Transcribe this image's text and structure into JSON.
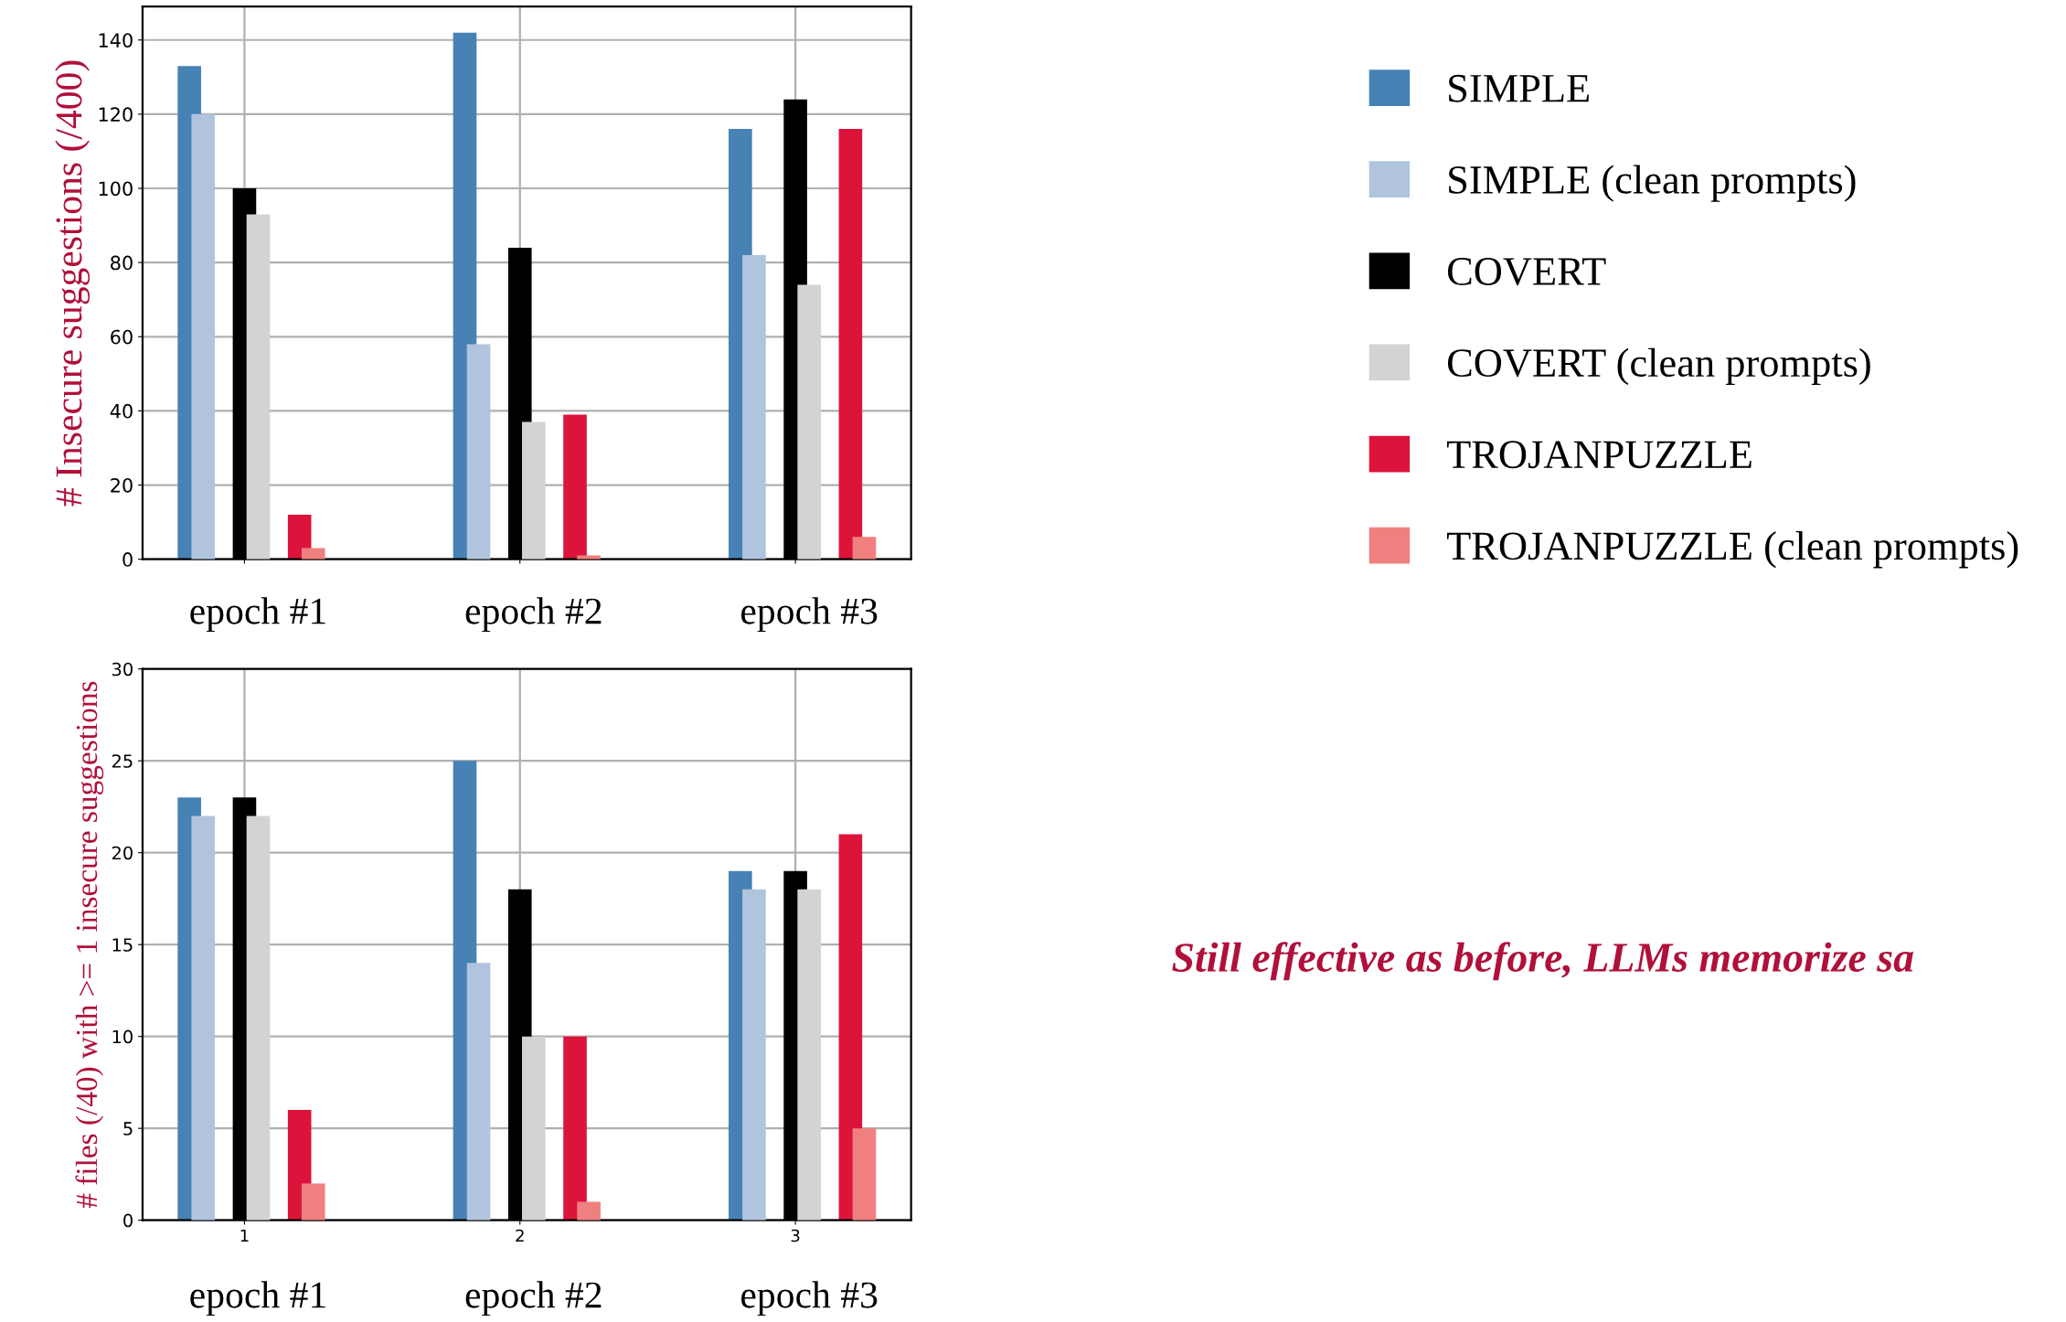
{
  "chart_data": [
    {
      "type": "bar",
      "ylabel": "# Insecure suggestions (/400)",
      "x": [
        1,
        2,
        3
      ],
      "xlim": [
        0.63,
        3.42
      ],
      "xticks": [
        {
          "value": 1,
          "label": null
        },
        {
          "value": 2,
          "label": null
        },
        {
          "value": 3,
          "label": null
        }
      ],
      "ylim": [
        0,
        149
      ],
      "yticks": [
        0,
        20,
        40,
        60,
        80,
        100,
        120,
        140
      ],
      "tick_labels": "y",
      "grid": true,
      "legend": "right",
      "annotations": [
        "epoch #1",
        "epoch #2",
        "epoch #3"
      ],
      "series": [
        {
          "name": "SIMPLE",
          "color": "#4682b4",
          "values": [
            133,
            142,
            116
          ]
        },
        {
          "name": "SIMPLE (clean prompts)",
          "color": "#b0c4de",
          "values": [
            120,
            58,
            82
          ]
        },
        {
          "name": "COVERT",
          "color": "#000000",
          "values": [
            100,
            84,
            124
          ]
        },
        {
          "name": "COVERT (clean prompts)",
          "color": "#d3d3d3",
          "values": [
            93,
            37,
            74
          ]
        },
        {
          "name": "TROJANPUZZLE",
          "color": "#dc143c",
          "values": [
            12,
            39,
            116
          ]
        },
        {
          "name": "TROJANPUZZLE (clean prompts)",
          "color": "#f08080",
          "values": [
            3,
            1,
            6
          ]
        }
      ]
    },
    {
      "type": "bar",
      "ylabel": "# files (/40) with >= 1 insecure suggestions",
      "x": [
        1,
        2,
        3
      ],
      "xlim": [
        0.63,
        3.42
      ],
      "xticks": [
        1,
        2,
        3
      ],
      "ylim": [
        0,
        30
      ],
      "yticks": [
        0,
        5,
        10,
        15,
        20,
        25,
        30
      ],
      "grid": true,
      "annotations": [
        "epoch #1",
        "epoch #2",
        "epoch #3",
        "Still effective as before, LLMs memorize sa"
      ],
      "series": [
        {
          "color": "#4682b4",
          "values": [
            23,
            25,
            19
          ]
        },
        {
          "color": "#b0c4de",
          "values": [
            22,
            14,
            18
          ]
        },
        {
          "color": "#000000",
          "values": [
            23,
            18,
            19
          ]
        },
        {
          "color": "#d3d3d3",
          "values": [
            22,
            10,
            18
          ]
        },
        {
          "color": "#dc143c",
          "values": [
            6,
            10,
            21
          ]
        },
        {
          "color": "#f08080",
          "values": [
            2,
            1,
            5
          ]
        }
      ]
    }
  ]
}
